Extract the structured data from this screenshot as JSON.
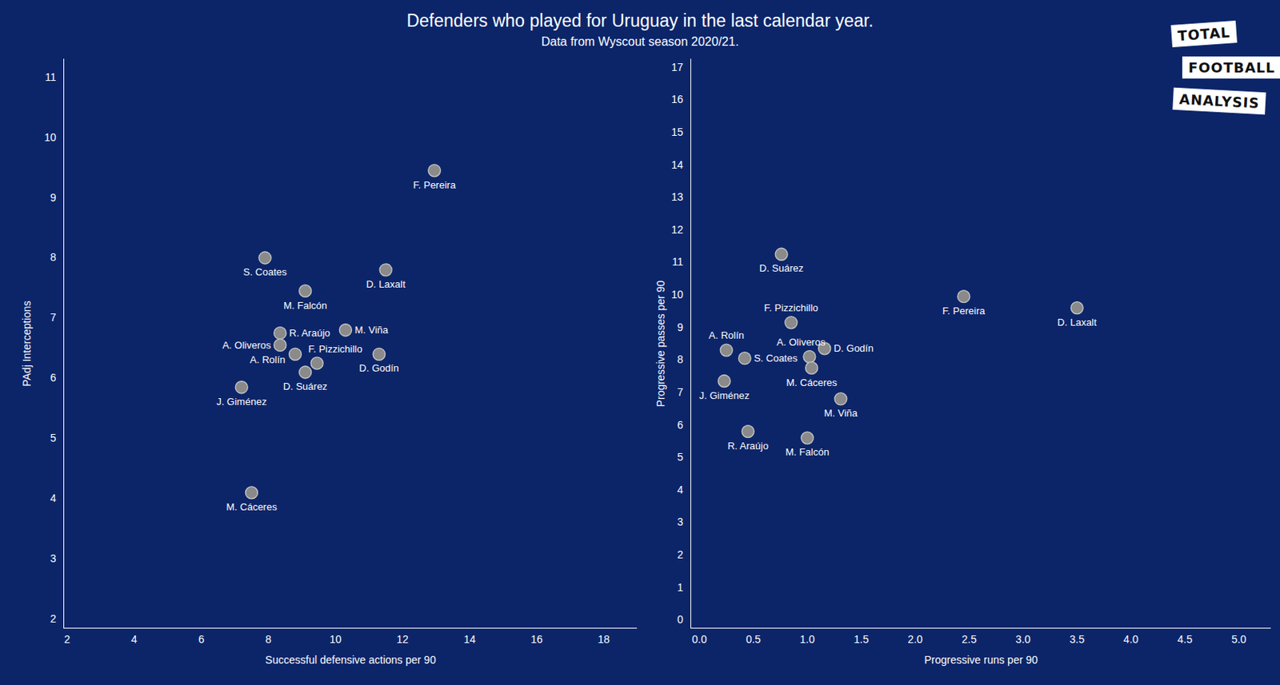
{
  "title": "Defenders who played for Uruguay in the last calendar year.",
  "subtitle": "Data from Wyscout season 2020/21.",
  "annotations": [
    "TOTAL",
    "FOOTBALL",
    "ANALYSIS"
  ],
  "chart_data": [
    {
      "type": "scatter",
      "x_label": "Successful defensive actions per 90",
      "y_label": "PAdj Interceptions",
      "color": "#8a8a8a",
      "labels": [
        "F. Pereira",
        "S. Coates",
        "D. Laxalt",
        "M. Falcón",
        "R. Araújo",
        "M. Viña",
        "A. Oliveros",
        "A. Rolín",
        "F. Pizzichillo",
        "D. Suárez",
        "D. Godín",
        "J. Giménez",
        "M. Cáceres"
      ],
      "x": [
        12.95,
        7.9,
        11.5,
        9.1,
        8.35,
        10.3,
        8.35,
        8.8,
        9.45,
        9.1,
        11.3,
        7.2,
        7.5
      ],
      "y": [
        9.45,
        8.0,
        7.8,
        7.45,
        6.75,
        6.8,
        6.55,
        6.4,
        6.25,
        6.1,
        6.4,
        5.85,
        4.1
      ],
      "xlim": [
        1.9,
        19
      ],
      "ylim": [
        1.85,
        11.3
      ],
      "xticks": [
        2,
        4,
        6,
        8,
        10,
        12,
        14,
        16,
        18
      ],
      "yticks": [
        2,
        3,
        4,
        5,
        6,
        7,
        8,
        9,
        10,
        11
      ]
    },
    {
      "type": "scatter",
      "x_label": "Progressive runs per 90",
      "y_label": "Progressive passes per 90",
      "color": "#8a8a8a",
      "labels": [
        "D. Suárez",
        "F. Pereira",
        "D. Laxalt",
        "F. Pizzichillo",
        "A. Rolín",
        "D. Godín",
        "S. Coates",
        "A. Oliveros",
        "M. Cáceres",
        "J. Giménez",
        "M. Viña",
        "R. Araújo",
        "M. Falcón"
      ],
      "x": [
        0.76,
        2.45,
        3.5,
        0.85,
        0.25,
        1.16,
        0.42,
        1.02,
        1.04,
        0.23,
        1.31,
        0.45,
        1.0
      ],
      "y": [
        11.25,
        9.95,
        9.6,
        9.15,
        8.3,
        8.35,
        8.05,
        8.1,
        7.75,
        7.35,
        6.8,
        5.8,
        5.6
      ],
      "xlim": [
        -0.08,
        5.3
      ],
      "ylim": [
        -0.25,
        17.25
      ],
      "xticks": [
        {
          "value": 0,
          "label": "0.0"
        },
        0.5,
        {
          "value": 1,
          "label": "1.0"
        },
        1.5,
        {
          "value": 2,
          "label": "2.0"
        },
        2.5,
        {
          "value": 3,
          "label": "3.0"
        },
        3.5,
        {
          "value": 4,
          "label": "4.0"
        },
        4.5,
        {
          "value": 5,
          "label": "5.0"
        }
      ],
      "yticks": [
        0,
        1,
        2,
        3,
        4,
        5,
        6,
        7,
        8,
        9,
        10,
        11,
        12,
        13,
        14,
        15,
        16,
        17
      ]
    }
  ]
}
